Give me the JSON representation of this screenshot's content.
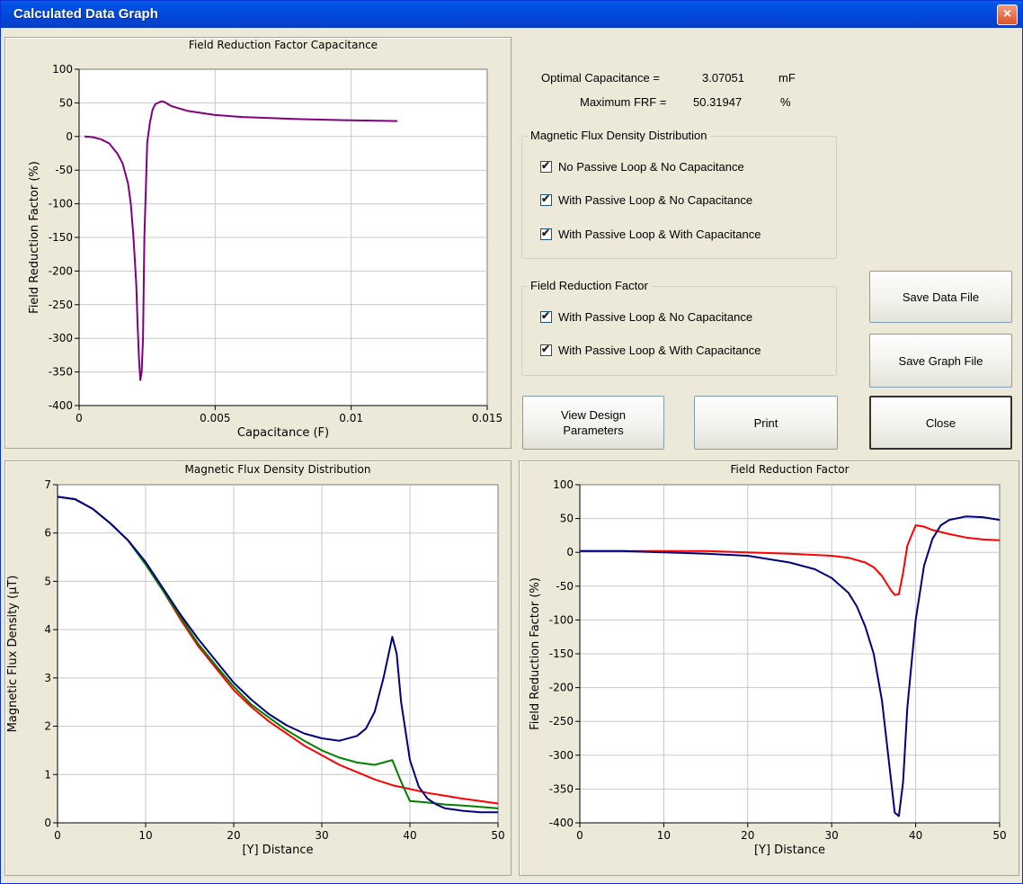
{
  "window": {
    "title": "Calculated Data Graph",
    "close_symbol": "×"
  },
  "info": {
    "optimal_label": "Optimal Capacitance =",
    "optimal_value": "3.07051",
    "optimal_unit": "mF",
    "maxfrf_label": "Maximum FRF =",
    "maxfrf_value": "50.31947",
    "maxfrf_unit": "%"
  },
  "mfd_group": {
    "title": "Magnetic Flux Density Distribution",
    "items": [
      {
        "label": "No Passive Loop & No Capacitance",
        "checked": true
      },
      {
        "label": "With Passive Loop & No Capacitance",
        "checked": true
      },
      {
        "label": "With Passive Loop & With Capacitance",
        "checked": true
      }
    ]
  },
  "frf_group": {
    "title": "Field Reduction Factor",
    "items": [
      {
        "label": "With Passive Loop & No Capacitance",
        "checked": true
      },
      {
        "label": "With Passive Loop & With Capacitance",
        "checked": true
      }
    ]
  },
  "check_mark": "✔",
  "buttons": {
    "view_design": "View Design Parameters",
    "print": "Print",
    "save_data": "Save Data File",
    "save_graph": "Save Graph File",
    "close": "Close"
  },
  "colors": {
    "purple": "#800080",
    "red": "#ff0000",
    "green": "#008000",
    "navy": "#000080"
  },
  "chart_data": [
    {
      "type": "line",
      "title": "Field Reduction Factor Capacitance",
      "xlabel": "Capacitance (F)",
      "ylabel": "Field Reduction Factor (%)",
      "xlim": [
        0,
        0.015
      ],
      "ylim": [
        -400,
        100
      ],
      "xticks": [
        "0",
        "0.005",
        "0.01",
        "0.015"
      ],
      "yticks": [
        "100",
        "50",
        "0",
        "-50",
        "-100",
        "-150",
        "-200",
        "-250",
        "-300",
        "-350",
        "-400"
      ],
      "grid": true,
      "series": [
        {
          "color": "#800080",
          "x": [
            0.0002,
            0.0005,
            0.0008,
            0.0011,
            0.0014,
            0.0016,
            0.0018,
            0.0019,
            0.002,
            0.0021,
            0.00215,
            0.0022,
            0.00225,
            0.0023,
            0.00235,
            0.0024,
            0.00245,
            0.0025,
            0.0026,
            0.0027,
            0.0028,
            0.003,
            0.0031,
            0.0034,
            0.004,
            0.005,
            0.006,
            0.008,
            0.01,
            0.0117
          ],
          "y": [
            0,
            -1,
            -4,
            -10,
            -25,
            -40,
            -70,
            -100,
            -150,
            -220,
            -280,
            -330,
            -362,
            -350,
            -300,
            -150,
            -80,
            -10,
            20,
            40,
            48,
            52,
            52,
            45,
            38,
            32,
            29,
            26,
            24,
            23
          ]
        }
      ]
    },
    {
      "type": "line",
      "title": "Magnetic Flux Density Distribution",
      "xlabel": "[Y] Distance",
      "ylabel": "Magnetic Flux Density (μT)",
      "xlim": [
        0,
        50
      ],
      "ylim": [
        0,
        7
      ],
      "xticks": [
        "0",
        "10",
        "20",
        "30",
        "40",
        "50"
      ],
      "yticks": [
        "7",
        "6",
        "5",
        "4",
        "3",
        "2",
        "1",
        "0"
      ],
      "grid": true,
      "series": [
        {
          "color": "#ff0000",
          "x": [
            0,
            2,
            4,
            6,
            8,
            10,
            12,
            14,
            16,
            18,
            20,
            22,
            24,
            26,
            28,
            30,
            32,
            34,
            36,
            38,
            40,
            42,
            44,
            46,
            48,
            50
          ],
          "y": [
            6.75,
            6.7,
            6.5,
            6.2,
            5.85,
            5.35,
            4.8,
            4.2,
            3.65,
            3.2,
            2.75,
            2.4,
            2.1,
            1.85,
            1.6,
            1.4,
            1.2,
            1.05,
            0.9,
            0.78,
            0.7,
            0.62,
            0.56,
            0.5,
            0.45,
            0.4
          ]
        },
        {
          "color": "#008000",
          "x": [
            0,
            2,
            4,
            6,
            8,
            10,
            12,
            14,
            16,
            18,
            20,
            22,
            24,
            26,
            28,
            30,
            32,
            34,
            36,
            37,
            38,
            39,
            40,
            42,
            44,
            46,
            48,
            50
          ],
          "y": [
            6.75,
            6.7,
            6.5,
            6.2,
            5.85,
            5.35,
            4.8,
            4.25,
            3.7,
            3.25,
            2.82,
            2.45,
            2.18,
            1.92,
            1.7,
            1.5,
            1.35,
            1.25,
            1.2,
            1.25,
            1.3,
            0.85,
            0.45,
            0.42,
            0.38,
            0.36,
            0.33,
            0.3
          ]
        },
        {
          "color": "#000080",
          "x": [
            0,
            2,
            4,
            6,
            8,
            10,
            12,
            14,
            16,
            18,
            20,
            22,
            24,
            26,
            28,
            30,
            32,
            34,
            35,
            36,
            37,
            38,
            38.5,
            39,
            40,
            41,
            42,
            43,
            44,
            46,
            48,
            50
          ],
          "y": [
            6.75,
            6.7,
            6.5,
            6.2,
            5.85,
            5.4,
            4.85,
            4.3,
            3.8,
            3.35,
            2.9,
            2.55,
            2.25,
            2.02,
            1.85,
            1.75,
            1.7,
            1.8,
            1.95,
            2.3,
            3.0,
            3.85,
            3.5,
            2.5,
            1.3,
            0.75,
            0.5,
            0.38,
            0.3,
            0.25,
            0.22,
            0.22
          ]
        }
      ]
    },
    {
      "type": "line",
      "title": "Field Reduction Factor",
      "xlabel": "[Y] Distance",
      "ylabel": "Field Reduction Factor (%)",
      "xlim": [
        0,
        50
      ],
      "ylim": [
        -400,
        100
      ],
      "xticks": [
        "0",
        "10",
        "20",
        "30",
        "40",
        "50"
      ],
      "yticks": [
        "100",
        "50",
        "0",
        "-50",
        "-100",
        "-150",
        "-200",
        "-250",
        "-300",
        "-350",
        "-400"
      ],
      "grid": true,
      "series": [
        {
          "color": "#ff0000",
          "x": [
            0,
            5,
            10,
            15,
            20,
            25,
            30,
            32,
            34,
            35,
            36,
            37,
            37.5,
            38,
            38.5,
            39,
            40,
            41,
            42,
            44,
            46,
            48,
            50
          ],
          "y": [
            2,
            2,
            2,
            2,
            0,
            -2,
            -5,
            -8,
            -15,
            -22,
            -35,
            -55,
            -63,
            -62,
            -30,
            10,
            40,
            38,
            33,
            27,
            22,
            19,
            18
          ]
        },
        {
          "color": "#000080",
          "x": [
            0,
            5,
            10,
            15,
            20,
            25,
            28,
            30,
            32,
            33,
            34,
            35,
            36,
            37,
            37.5,
            38,
            38.5,
            39,
            40,
            41,
            42,
            43,
            44,
            46,
            48,
            50
          ],
          "y": [
            2,
            2,
            0,
            -2,
            -5,
            -15,
            -25,
            -38,
            -60,
            -80,
            -110,
            -150,
            -220,
            -330,
            -385,
            -390,
            -340,
            -230,
            -100,
            -20,
            20,
            40,
            48,
            53,
            52,
            48
          ]
        }
      ]
    }
  ]
}
